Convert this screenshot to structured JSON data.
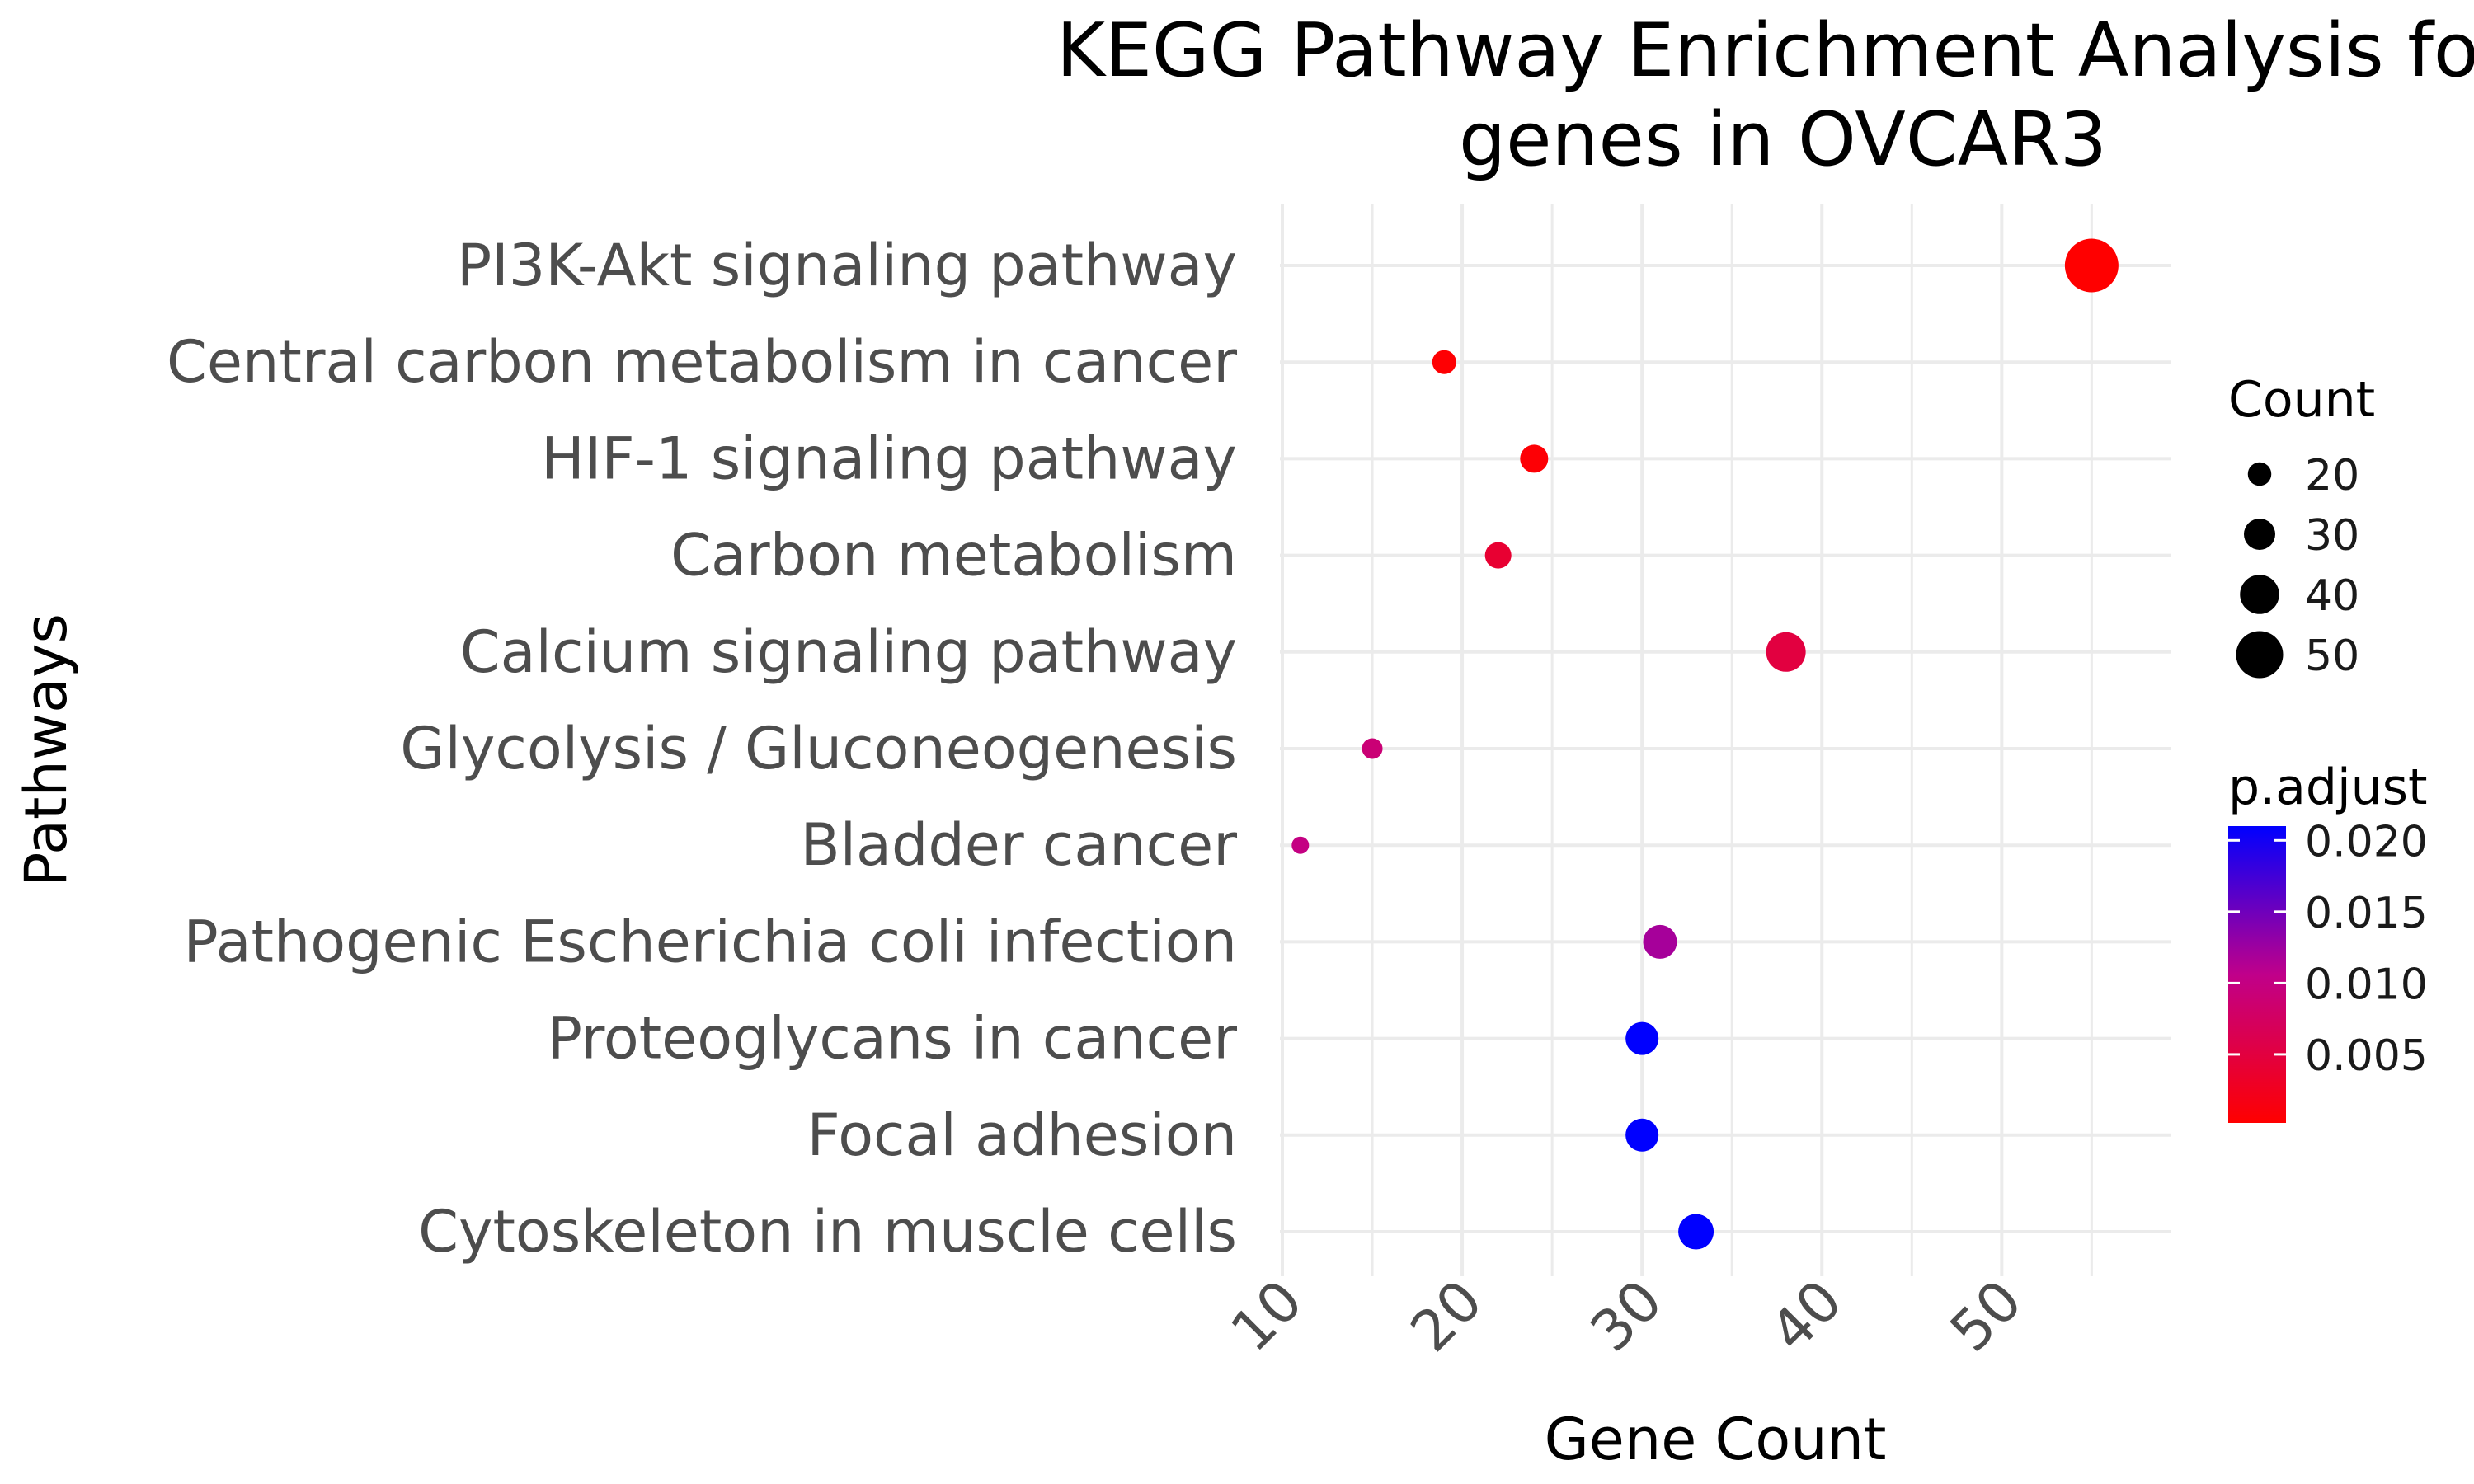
{
  "chart_data": {
    "type": "scatter",
    "title_lines": [
      "KEGG Pathway Enrichment Analysis for",
      "genes in OVCAR3"
    ],
    "xlabel": "Gene Count",
    "ylabel": "Pathways",
    "xlim": [
      10,
      57
    ],
    "x_ticks": [
      "10",
      "20",
      "30",
      "40",
      "50"
    ],
    "grid": true,
    "categories": [
      "PI3K-Akt signaling pathway",
      "Central carbon metabolism in cancer",
      "HIF-1 signaling pathway",
      "Carbon metabolism",
      "Calcium signaling pathway",
      "Glycolysis / Gluconeogenesis",
      "Bladder cancer",
      "Pathogenic Escherichia coli infection",
      "Proteoglycans in cancer",
      "Focal adhesion",
      "Cytoskeleton in muscle cells"
    ],
    "points": [
      {
        "pathway": "PI3K-Akt signaling pathway",
        "count": 55,
        "p_adjust": 0.0002
      },
      {
        "pathway": "Central carbon metabolism in cancer",
        "count": 19,
        "p_adjust": 0.0004
      },
      {
        "pathway": "HIF-1 signaling pathway",
        "count": 24,
        "p_adjust": 0.0006
      },
      {
        "pathway": "Carbon metabolism",
        "count": 22,
        "p_adjust": 0.004
      },
      {
        "pathway": "Calcium signaling pathway",
        "count": 38,
        "p_adjust": 0.005
      },
      {
        "pathway": "Glycolysis / Gluconeogenesis",
        "count": 15,
        "p_adjust": 0.009
      },
      {
        "pathway": "Bladder cancer",
        "count": 11,
        "p_adjust": 0.01
      },
      {
        "pathway": "Pathogenic Escherichia coli infection",
        "count": 31,
        "p_adjust": 0.012
      },
      {
        "pathway": "Proteoglycans in cancer",
        "count": 30,
        "p_adjust": 0.021
      },
      {
        "pathway": "Focal adhesion",
        "count": 30,
        "p_adjust": 0.021
      },
      {
        "pathway": "Cytoskeleton in muscle cells",
        "count": 33,
        "p_adjust": 0.021
      }
    ],
    "size_legend": {
      "title": "Count",
      "values": [
        20,
        30,
        40,
        50
      ],
      "labels": [
        "20",
        "30",
        "40",
        "50"
      ]
    },
    "color_legend": {
      "title": "p.adjust",
      "range": [
        0.0002,
        0.021
      ],
      "ticks": [
        0.005,
        0.01,
        0.015,
        0.02
      ],
      "labels": [
        "0.005",
        "0.010",
        "0.015",
        "0.020"
      ],
      "low_color": "#ff0000",
      "high_color": "#0000ff"
    },
    "legend_position": "right"
  }
}
